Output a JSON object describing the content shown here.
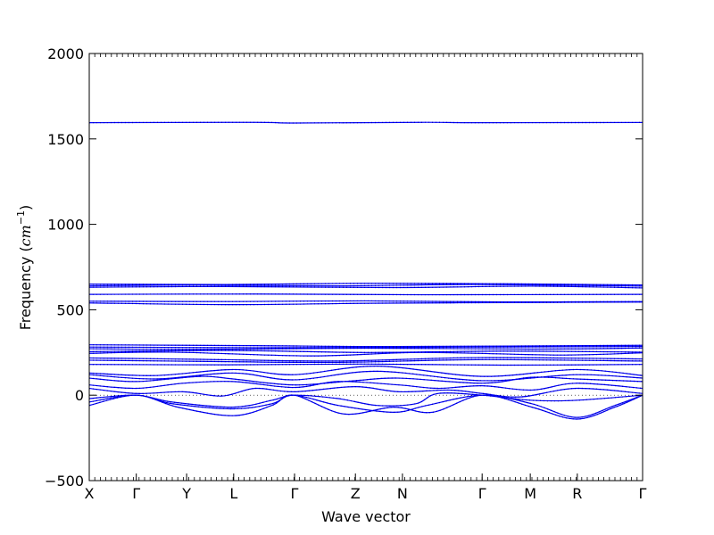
{
  "chart_data": {
    "type": "line",
    "title": "",
    "xlabel": "Wave vector",
    "ylabel_prefix": "Frequency (",
    "ylabel_unit": "cm",
    "ylabel_exponent": "−1",
    "ylabel_suffix": ")",
    "ylim": [
      -500,
      2000
    ],
    "yticks": [
      -500,
      0,
      500,
      1000,
      1500,
      2000
    ],
    "ytick_labels": [
      "−500",
      "0",
      "500",
      "1000",
      "1500",
      "2000"
    ],
    "xlim": [
      0,
      1
    ],
    "kpoints": [
      {
        "label": "X",
        "x": 0.0
      },
      {
        "label": "Γ",
        "x": 0.085
      },
      {
        "label": "Y",
        "x": 0.176
      },
      {
        "label": "L",
        "x": 0.261
      },
      {
        "label": "Γ",
        "x": 0.371
      },
      {
        "label": "Z",
        "x": 0.481
      },
      {
        "label": "N",
        "x": 0.566
      },
      {
        "label": "Γ",
        "x": 0.71
      },
      {
        "label": "M",
        "x": 0.797
      },
      {
        "label": "R",
        "x": 0.882
      },
      {
        "label": "Γ",
        "x": 1.0
      }
    ],
    "minor_x_ticks": 100,
    "zero_line": true,
    "series": [
      {
        "x": [
          0,
          0.3,
          0.37,
          0.6,
          0.7,
          1.0
        ],
        "y": [
          1595,
          1597,
          1593,
          1597,
          1595,
          1596
        ]
      },
      {
        "x": [
          0,
          0.25,
          0.5,
          0.75,
          1.0
        ],
        "y": [
          650,
          648,
          655,
          652,
          645
        ]
      },
      {
        "x": [
          0,
          0.2,
          0.45,
          0.7,
          1.0
        ],
        "y": [
          640,
          645,
          640,
          648,
          638
        ]
      },
      {
        "x": [
          0,
          0.25,
          0.55,
          0.8,
          1.0
        ],
        "y": [
          632,
          636,
          630,
          638,
          628
        ]
      },
      {
        "x": [
          0,
          0.3,
          0.6,
          1.0
        ],
        "y": [
          590,
          592,
          588,
          590
        ]
      },
      {
        "x": [
          0,
          0.26,
          0.5,
          0.75,
          1.0
        ],
        "y": [
          550,
          548,
          552,
          546,
          548
        ]
      },
      {
        "x": [
          0,
          0.26,
          0.5,
          0.75,
          1.0
        ],
        "y": [
          540,
          530,
          538,
          542,
          545
        ]
      },
      {
        "x": [
          0,
          0.3,
          0.55,
          1.0
        ],
        "y": [
          295,
          290,
          285,
          292
        ]
      },
      {
        "x": [
          0,
          0.3,
          0.55,
          1.0
        ],
        "y": [
          282,
          278,
          280,
          285
        ]
      },
      {
        "x": [
          0,
          0.2,
          0.5,
          0.8,
          1.0
        ],
        "y": [
          272,
          268,
          275,
          270,
          276
        ]
      },
      {
        "x": [
          0,
          0.25,
          0.5,
          0.75,
          1.0
        ],
        "y": [
          255,
          262,
          250,
          258,
          252
        ]
      },
      {
        "x": [
          0,
          0.15,
          0.4,
          0.6,
          0.85,
          1.0
        ],
        "y": [
          245,
          252,
          230,
          250,
          235,
          248
        ]
      },
      {
        "x": [
          0,
          0.2,
          0.45,
          0.7,
          1.0
        ],
        "y": [
          218,
          210,
          200,
          220,
          212
        ]
      },
      {
        "x": [
          0,
          0.2,
          0.45,
          0.7,
          1.0
        ],
        "y": [
          205,
          198,
          192,
          208,
          200
        ]
      },
      {
        "x": [
          0,
          0.25,
          0.5,
          0.75,
          1.0
        ],
        "y": [
          180,
          178,
          182,
          176,
          180
        ]
      },
      {
        "x": [
          0,
          0.12,
          0.26,
          0.37,
          0.52,
          0.71,
          0.88,
          1.0
        ],
        "y": [
          130,
          115,
          150,
          120,
          170,
          110,
          150,
          115
        ]
      },
      {
        "x": [
          0,
          0.12,
          0.26,
          0.37,
          0.52,
          0.71,
          0.88,
          1.0
        ],
        "y": [
          120,
          95,
          130,
          90,
          140,
          85,
          120,
          100
        ]
      },
      {
        "x": [
          0,
          0.085,
          0.2,
          0.26,
          0.37,
          0.48,
          0.56,
          0.71,
          0.8,
          0.88,
          1.0
        ],
        "y": [
          100,
          80,
          110,
          95,
          60,
          85,
          100,
          70,
          105,
          95,
          80
        ]
      },
      {
        "x": [
          0,
          0.085,
          0.17,
          0.26,
          0.37,
          0.45,
          0.56,
          0.63,
          0.71,
          0.8,
          0.88,
          1.0
        ],
        "y": [
          60,
          40,
          70,
          80,
          45,
          80,
          60,
          40,
          55,
          30,
          70,
          40
        ]
      },
      {
        "x": [
          0,
          0.085,
          0.17,
          0.24,
          0.3,
          0.37,
          0.48,
          0.56,
          0.65,
          0.71,
          0.78,
          0.88,
          1.0
        ],
        "y": [
          40,
          10,
          20,
          -5,
          40,
          20,
          50,
          20,
          30,
          10,
          -10,
          40,
          10
        ]
      },
      {
        "x": [
          0,
          0.085,
          0.15,
          0.26,
          0.33,
          0.37,
          0.45,
          0.52,
          0.59,
          0.63,
          0.71,
          0.8,
          0.88,
          1.0
        ],
        "y": [
          -20,
          0,
          -40,
          -70,
          -30,
          0,
          -20,
          -60,
          -50,
          10,
          0,
          -30,
          -30,
          0
        ]
      },
      {
        "x": [
          0,
          0.085,
          0.15,
          0.26,
          0.33,
          0.37,
          0.45,
          0.55,
          0.61,
          0.71,
          0.8,
          0.88,
          0.95,
          1.0
        ],
        "y": [
          -40,
          0,
          -50,
          -80,
          -50,
          0,
          -60,
          -100,
          -60,
          0,
          -50,
          -130,
          -60,
          0
        ]
      },
      {
        "x": [
          0,
          0.085,
          0.16,
          0.26,
          0.33,
          0.37,
          0.46,
          0.55,
          0.62,
          0.71,
          0.8,
          0.88,
          0.95,
          1.0
        ],
        "y": [
          -60,
          0,
          -70,
          -120,
          -60,
          0,
          -110,
          -70,
          -100,
          0,
          -70,
          -140,
          -70,
          0
        ]
      }
    ]
  }
}
